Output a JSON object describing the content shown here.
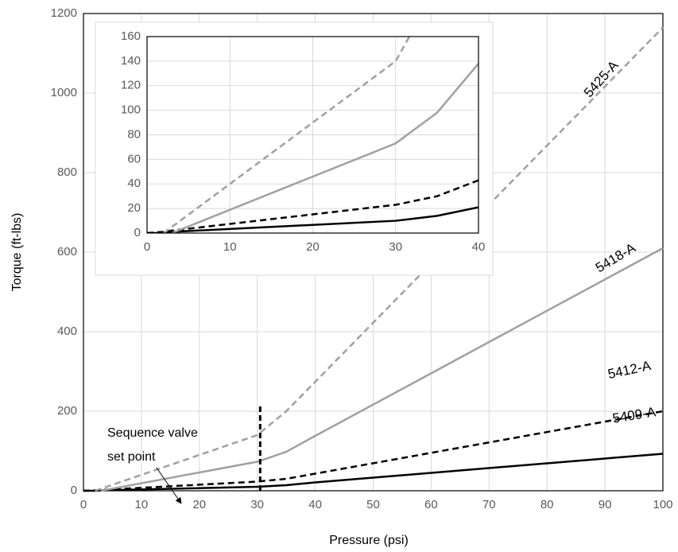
{
  "chart_data": {
    "type": "line",
    "x_label": "Pressure (psi)",
    "y_label": "Torque (ft-lbs)",
    "x": [
      0,
      2,
      3,
      30,
      35,
      40,
      100
    ],
    "series": [
      {
        "name": "5409-A",
        "color": "#000000",
        "dashed": false,
        "values": [
          0,
          0,
          1,
          10,
          14,
          21,
          93
        ]
      },
      {
        "name": "5412-A",
        "color": "#000000",
        "dashed": true,
        "values": [
          0,
          1,
          2,
          23,
          30,
          43,
          200
        ]
      },
      {
        "name": "5418-A",
        "color": "#a0a0a0",
        "dashed": false,
        "values": [
          null,
          null,
          0,
          73,
          98,
          138,
          610
        ]
      },
      {
        "name": "5425-A",
        "color": "#a0a0a0",
        "dashed": true,
        "values": [
          null,
          0,
          5,
          140,
          200,
          274,
          1165
        ]
      }
    ],
    "xlim": [
      0,
      100
    ],
    "xticks": [
      0,
      10,
      20,
      30,
      40,
      50,
      60,
      70,
      80,
      90,
      100
    ],
    "ylim": [
      0,
      1200
    ],
    "yticks": [
      0,
      200,
      400,
      600,
      800,
      1000,
      1200
    ],
    "grid": true,
    "annotation": {
      "lines": [
        "Sequence valve",
        "set point"
      ],
      "x": 30.5,
      "y_top": 215
    },
    "inset": {
      "xlim": [
        0,
        40
      ],
      "xticks": [
        0,
        10,
        20,
        30,
        40
      ],
      "ylim": [
        0,
        160
      ],
      "yticks": [
        0,
        20,
        40,
        60,
        80,
        100,
        120,
        140,
        160
      ]
    }
  }
}
